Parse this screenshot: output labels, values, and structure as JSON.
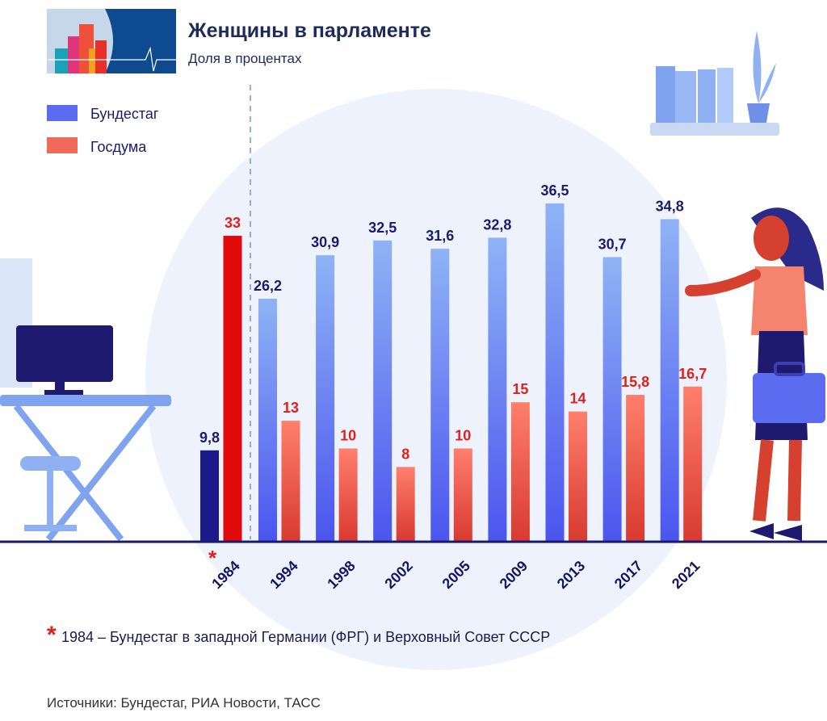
{
  "header": {
    "title": "Женщины в парламенте",
    "subtitle": "Доля в процентах"
  },
  "chart_data": {
    "type": "bar",
    "title": "Женщины в парламенте",
    "subtitle": "Доля в процентах",
    "categories": [
      "1984",
      "1994",
      "1998",
      "2002",
      "2005",
      "2009",
      "2013",
      "2017",
      "2021"
    ],
    "category_labels": [
      "1984",
      "1994",
      "1998",
      "2002",
      "2005",
      "2009",
      "2013",
      "2017",
      "2021"
    ],
    "series": [
      {
        "name": "Бундестаг",
        "values": [
          9.8,
          26.2,
          30.9,
          32.5,
          31.6,
          32.8,
          36.5,
          30.7,
          34.8
        ],
        "labels": [
          "9,8",
          "26,2",
          "30,9",
          "32,5",
          "31,6",
          "32,8",
          "36,5",
          "30,7",
          "34,8"
        ],
        "color": "#5b6cf0"
      },
      {
        "name": "Госдума",
        "values": [
          33,
          13,
          10,
          8,
          10,
          15,
          14,
          15.8,
          16.7
        ],
        "labels": [
          "33",
          "13",
          "10",
          "8",
          "10",
          "15",
          "14",
          "15,8",
          "16,7"
        ],
        "color": "#f06a5a"
      }
    ],
    "highlight_1984_colors": {
      "bundestag": "#1c1a8a",
      "gosduma": "#e00a0a"
    },
    "ylim": [
      0,
      40
    ],
    "grid": false,
    "legend_placement": "top-left",
    "footnote_marker": "*",
    "footnote": "1984 – Бундестаг  в западной Германии (ФРГ) и Верховный Совет СССР"
  },
  "source": "Источники: Бундестаг, РИА Новости, ТАСС",
  "colors": {
    "label_blue": "#1c1a6e",
    "label_red": "#e0201a",
    "axis": "#1c1a6e"
  }
}
